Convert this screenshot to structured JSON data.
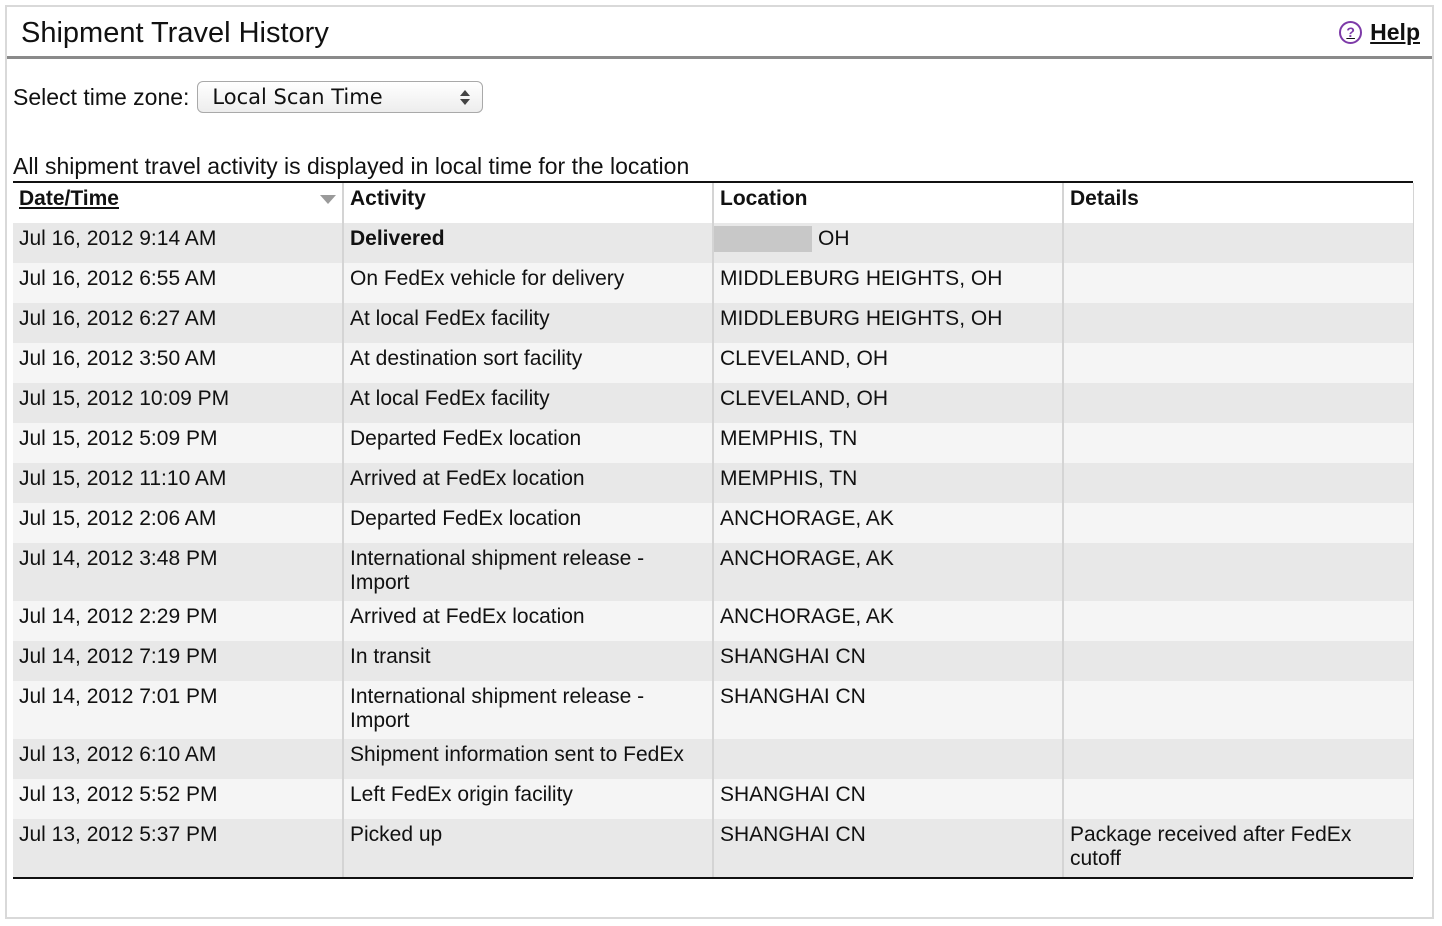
{
  "header": {
    "title": "Shipment Travel History",
    "help_label": "Help",
    "help_icon": "question-circle-icon"
  },
  "timezone": {
    "label": "Select time zone:",
    "selected": "Local Scan Time"
  },
  "note": "All shipment travel activity is displayed in local time for the location",
  "table": {
    "columns": [
      "Date/Time",
      "Activity",
      "Location",
      "Details"
    ],
    "rows": [
      {
        "datetime": "Jul 16, 2012 9:14 AM",
        "activity": "Delivered",
        "location": "OH",
        "details": ""
      },
      {
        "datetime": "Jul 16, 2012 6:55 AM",
        "activity": "On FedEx vehicle for delivery",
        "location": "MIDDLEBURG HEIGHTS, OH",
        "details": ""
      },
      {
        "datetime": "Jul 16, 2012 6:27 AM",
        "activity": "At local FedEx facility",
        "location": "MIDDLEBURG HEIGHTS, OH",
        "details": ""
      },
      {
        "datetime": "Jul 16, 2012 3:50 AM",
        "activity": "At destination sort facility",
        "location": "CLEVELAND, OH",
        "details": ""
      },
      {
        "datetime": "Jul 15, 2012 10:09 PM",
        "activity": "At local FedEx facility",
        "location": "CLEVELAND, OH",
        "details": ""
      },
      {
        "datetime": "Jul 15, 2012 5:09 PM",
        "activity": "Departed FedEx location",
        "location": "MEMPHIS, TN",
        "details": ""
      },
      {
        "datetime": "Jul 15, 2012 11:10 AM",
        "activity": "Arrived at FedEx location",
        "location": "MEMPHIS, TN",
        "details": ""
      },
      {
        "datetime": "Jul 15, 2012 2:06 AM",
        "activity": "Departed FedEx location",
        "location": "ANCHORAGE, AK",
        "details": ""
      },
      {
        "datetime": "Jul 14, 2012 3:48 PM",
        "activity": "International shipment release - Import",
        "location": "ANCHORAGE, AK",
        "details": ""
      },
      {
        "datetime": "Jul 14, 2012 2:29 PM",
        "activity": "Arrived at FedEx location",
        "location": "ANCHORAGE, AK",
        "details": ""
      },
      {
        "datetime": "Jul 14, 2012 7:19 PM",
        "activity": "In transit",
        "location": "SHANGHAI CN",
        "details": ""
      },
      {
        "datetime": "Jul 14, 2012 7:01 PM",
        "activity": "International shipment release - Import",
        "location": "SHANGHAI CN",
        "details": ""
      },
      {
        "datetime": "Jul 13, 2012 6:10 AM",
        "activity": "Shipment information sent to FedEx",
        "location": "",
        "details": ""
      },
      {
        "datetime": "Jul 13, 2012 5:52 PM",
        "activity": "Left FedEx origin facility",
        "location": "SHANGHAI CN",
        "details": ""
      },
      {
        "datetime": "Jul 13, 2012 5:37 PM",
        "activity": "Picked up",
        "location": "SHANGHAI CN",
        "details": "Package received after FedEx cutoff"
      }
    ]
  }
}
